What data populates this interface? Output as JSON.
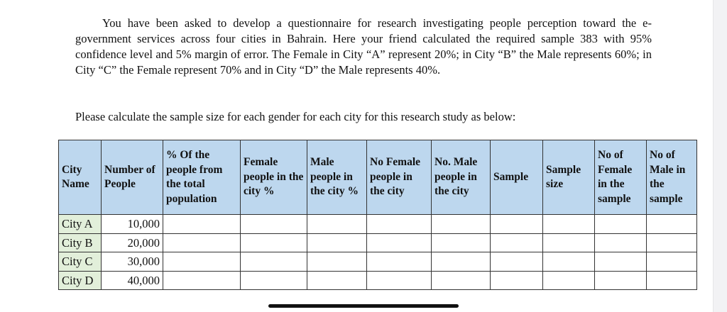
{
  "question": {
    "paragraph": "You have been asked to develop a questionnaire for research investigating people perception toward the e-government services across four cities in Bahrain. Here your friend calculated the required sample 383 with 95% confidence level and 5% margin of error. The Female in City “A” represent 20%; in City “B” the Male represents 60%; in City “C” the Female represent 70% and in City “D” the Male represents 40%.",
    "instruction": "Please calculate the sample size for each gender for each city for this research study as below:"
  },
  "table": {
    "headers": [
      "City Name",
      "Number of People",
      "% Of the people from the total population",
      "Female people in the city %",
      "Male people in the city %",
      "No Female people in the city",
      "No. Male people in the city",
      "Sample",
      "Sample size",
      "No of Female in the sample",
      "No of Male in the sample"
    ],
    "rows": [
      {
        "city": "City A",
        "people": "10,000"
      },
      {
        "city": "City B",
        "people": "20,000"
      },
      {
        "city": "City C",
        "people": "30,000"
      },
      {
        "city": "City D",
        "people": "40,000"
      }
    ]
  },
  "colors": {
    "header_bg": "#bdd7ee",
    "city_bg": "#e2efda"
  }
}
